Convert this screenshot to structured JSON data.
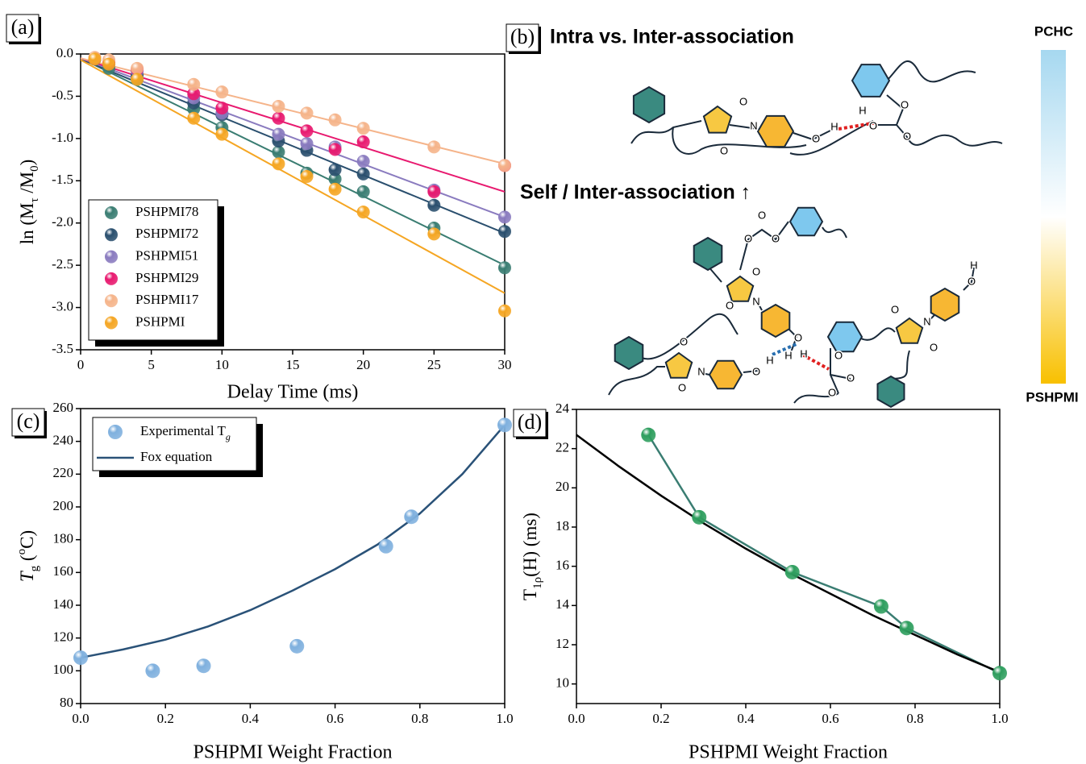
{
  "chart_data": [
    {
      "label": "(a)",
      "type": "scatter",
      "x_label": "Delay Time (ms)",
      "y_label_parts": [
        "ln (M",
        "τ",
        " /M",
        "0",
        ")"
      ],
      "xlim": [
        0,
        30
      ],
      "ylim": [
        -3.5,
        0
      ],
      "xticks": [
        0,
        5,
        10,
        15,
        20,
        25,
        30
      ],
      "yticks": [
        {
          "value": 0,
          "label": "0.0"
        },
        -0.5,
        {
          "value": -1,
          "label": "-1.0"
        },
        -1.5,
        {
          "value": -2,
          "label": "-2.0"
        },
        -2.5,
        {
          "value": -3,
          "label": "-3.0"
        },
        -3.5
      ],
      "x": [
        1,
        2,
        4,
        8,
        10,
        14,
        16,
        18,
        20,
        25,
        30
      ],
      "fit_x": [
        0,
        30
      ],
      "series": [
        {
          "name": "PSHPMI78",
          "color": "#3a7d72",
          "mode": "markers",
          "values": [
            -0.06,
            -0.17,
            -0.3,
            -0.65,
            -0.87,
            -1.16,
            -1.41,
            -1.48,
            -1.63,
            -2.06,
            -2.53
          ],
          "fit": [
            -0.05,
            -2.5
          ]
        },
        {
          "name": "PSHPMI72",
          "color": "#2a4f6e",
          "mode": "markers",
          "values": [
            -0.06,
            -0.12,
            -0.25,
            -0.58,
            -0.72,
            -1.03,
            -1.14,
            -1.37,
            -1.42,
            -1.79,
            -2.1
          ],
          "fit": [
            -0.06,
            -2.12
          ]
        },
        {
          "name": "PSHPMI51",
          "color": "#8a7bbf",
          "mode": "markers",
          "values": [
            -0.05,
            -0.1,
            -0.2,
            -0.52,
            -0.7,
            -0.95,
            -1.06,
            -1.1,
            -1.27,
            -1.61,
            -1.93
          ],
          "fit": [
            -0.05,
            -1.93
          ]
        },
        {
          "name": "PSHPMI29",
          "color": "#e8196f",
          "mode": "markers",
          "values": [
            -0.05,
            -0.1,
            -0.18,
            -0.47,
            -0.64,
            -0.76,
            -0.91,
            -1.13,
            -1.04,
            -1.63,
            -1.32
          ],
          "fit": [
            -0.05,
            -1.63
          ]
        },
        {
          "name": "PSHPMI17",
          "color": "#f5b48a",
          "mode": "markers",
          "values": [
            -0.04,
            -0.07,
            -0.17,
            -0.36,
            -0.45,
            -0.62,
            -0.7,
            -0.78,
            -0.88,
            -1.1,
            -1.32
          ],
          "fit": [
            -0.05,
            -1.3
          ]
        },
        {
          "name": "PSHPMI",
          "color": "#f5a623",
          "mode": "markers",
          "values": [
            -0.06,
            -0.12,
            -0.3,
            -0.76,
            -0.95,
            -1.3,
            -1.45,
            -1.6,
            -1.87,
            -2.13,
            -3.04
          ],
          "fit": [
            -0.07,
            -2.83
          ]
        }
      ]
    },
    {
      "label": "(c)",
      "type": "scatter",
      "x_label": "PSHPMI Weight Fraction",
      "y_label_parts": [
        "T",
        "g",
        " (",
        "o",
        "C)"
      ],
      "xlim": [
        0,
        1
      ],
      "ylim": [
        80,
        260
      ],
      "xticks": [
        {
          "value": 0,
          "label": "0.0"
        },
        0.2,
        0.4,
        0.6,
        0.8,
        {
          "value": 1,
          "label": "1.0"
        }
      ],
      "yticks": [
        80,
        100,
        120,
        140,
        160,
        180,
        200,
        220,
        240,
        260
      ],
      "series": [
        {
          "name_parts": [
            "Experimental T",
            "g"
          ],
          "color": "#7fb0de",
          "mode": "markers",
          "x": [
            0,
            0.17,
            0.29,
            0.51,
            0.72,
            0.78,
            1
          ],
          "values": [
            108,
            100,
            103,
            115,
            176,
            194,
            250
          ]
        },
        {
          "name": "Fox equation",
          "color": "#2a5278",
          "mode": "line",
          "x": [
            0,
            0.1,
            0.2,
            0.3,
            0.4,
            0.5,
            0.6,
            0.7,
            0.8,
            0.9,
            1
          ],
          "values": [
            108,
            113,
            119,
            127,
            137,
            149,
            162,
            177,
            196,
            220,
            250
          ]
        }
      ]
    },
    {
      "label": "(d)",
      "type": "scatter",
      "x_label": "PSHPMI Weight Fraction",
      "y_label_parts": [
        "T",
        "1ρ",
        "(H) (ms)"
      ],
      "xlim": [
        0,
        1
      ],
      "ylim": [
        9,
        24
      ],
      "xticks": [
        {
          "value": 0,
          "label": "0.0"
        },
        0.2,
        0.4,
        0.6,
        0.8,
        {
          "value": 1,
          "label": "1.0"
        }
      ],
      "yticks": [
        10,
        12,
        14,
        16,
        18,
        20,
        22,
        24
      ],
      "series": [
        {
          "color": "#2e9e5e",
          "line_color": "#3a7d72",
          "mode": "markers+line",
          "x": [
            0.17,
            0.29,
            0.51,
            0.72,
            0.78,
            1
          ],
          "values": [
            22.7,
            18.5,
            15.7,
            13.95,
            12.85,
            10.55
          ]
        },
        {
          "color": "#000000",
          "mode": "line",
          "x": [
            0,
            0.1,
            0.2,
            0.3,
            0.4,
            0.5,
            0.6,
            0.7,
            0.8,
            0.9,
            1
          ],
          "values": [
            22.7,
            21.1,
            19.6,
            18.2,
            16.9,
            15.7,
            14.6,
            13.5,
            12.5,
            11.5,
            10.6
          ]
        }
      ]
    }
  ],
  "diagram": {
    "label": "(b)",
    "title": "Intra vs. Inter-association",
    "subtitle": "Self / Inter-association ↑",
    "colorbar_top": "PCHC",
    "colorbar_bottom": "PSHPMI",
    "atoms": [
      "O",
      "O",
      "N",
      "O",
      "H",
      "H",
      "O",
      "O",
      "O",
      "O",
      "O",
      "O",
      "O",
      "O",
      "N",
      "O",
      "H",
      "O",
      "O",
      "N",
      "O",
      "H",
      "H",
      "O",
      "O",
      "O",
      "O",
      "O",
      "N",
      "O",
      "H"
    ]
  }
}
